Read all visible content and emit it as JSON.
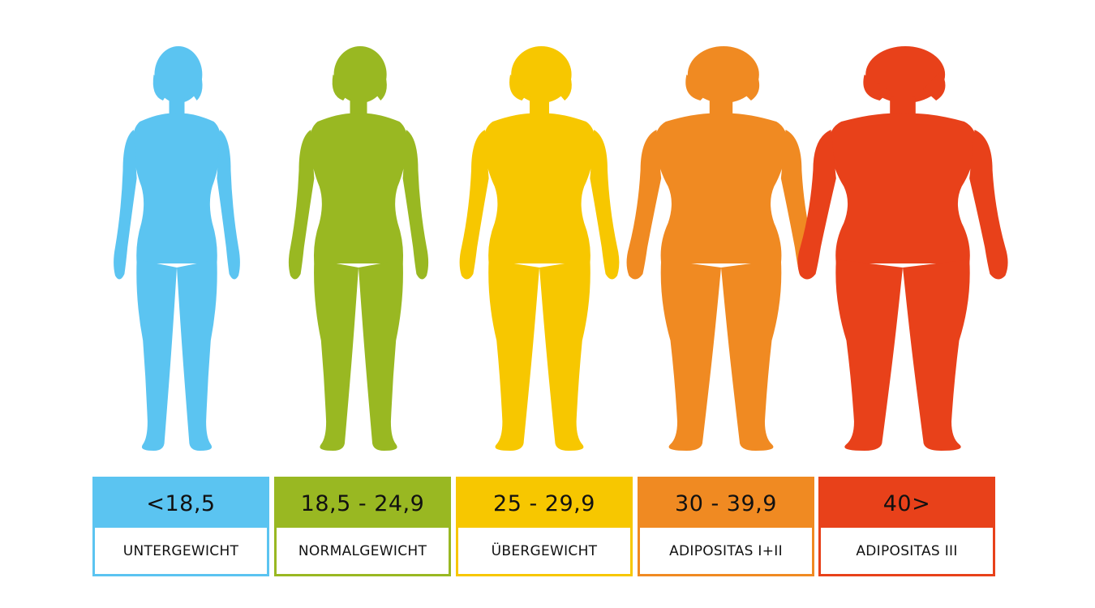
{
  "categories": [
    {
      "range": "<18,5",
      "label": "UNTERGEWICHT",
      "color": "#5bc4f1"
    },
    {
      "range": "18,5 - 24,9",
      "label": "NORMALGEWICHT",
      "color": "#99b822"
    },
    {
      "range": "25 - 29,9",
      "label": "ÜBERGEWICHT",
      "color": "#f7c700"
    },
    {
      "range": "30 - 39,9",
      "label": "ADIPOSITAS I+II",
      "color": "#f08a22"
    },
    {
      "range": "40>",
      "label": "ADIPOSITAS III",
      "color": "#e8411a"
    }
  ],
  "figure_icon": "woman-silhouette-icon"
}
